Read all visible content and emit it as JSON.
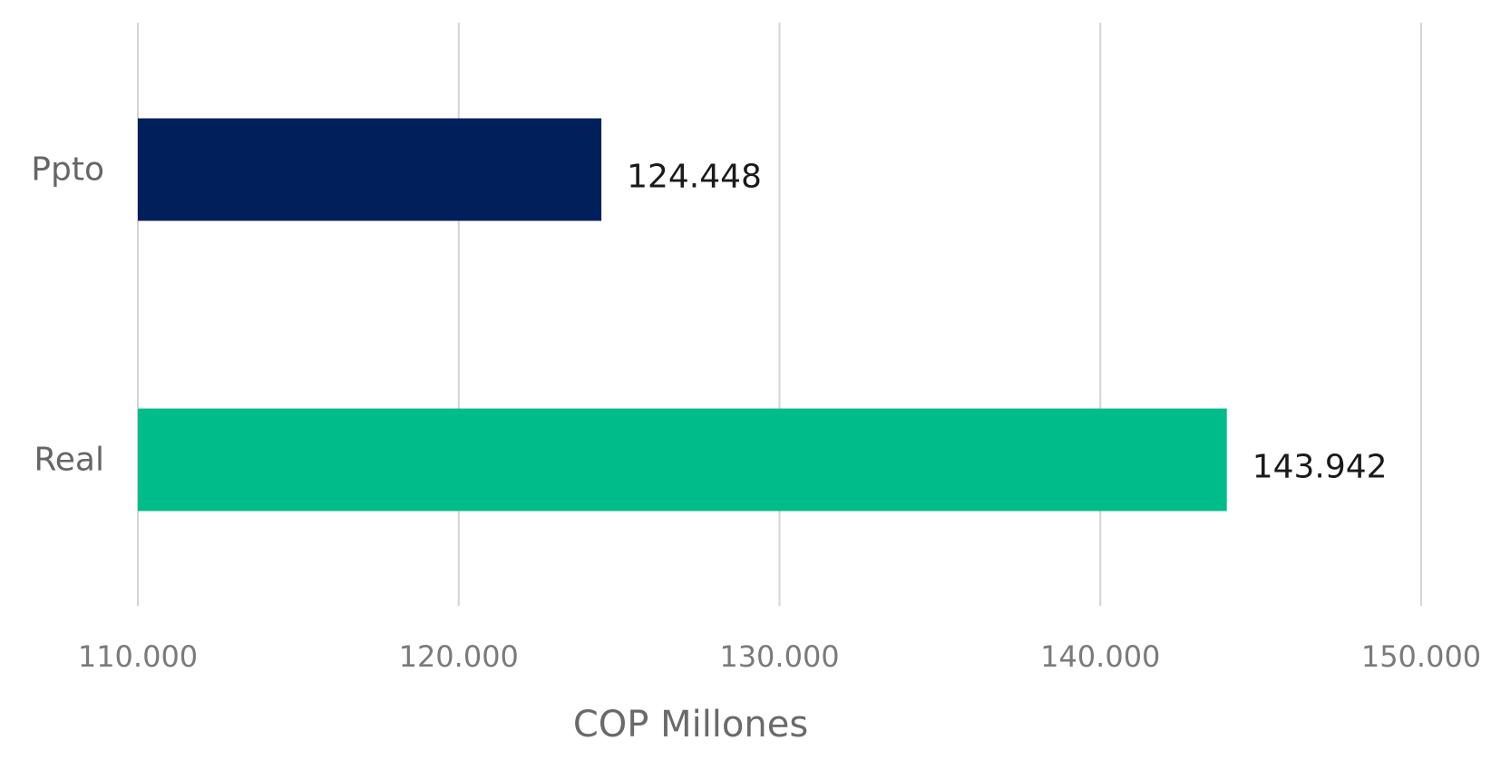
{
  "chart_data": {
    "type": "bar",
    "orientation": "horizontal",
    "categories": [
      "Ppto",
      "Real"
    ],
    "values": [
      124448,
      143942
    ],
    "value_labels": [
      "124.448",
      "143.942"
    ],
    "bar_colors": [
      "#001f5b",
      "#00bb8a"
    ],
    "xlabel": "COP Millones",
    "ylabel": "",
    "xlim": [
      110000,
      150000
    ],
    "xticks": [
      110000,
      120000,
      130000,
      140000,
      150000
    ],
    "xtick_labels": [
      "110.000",
      "120.000",
      "130.000",
      "140.000",
      "150.000"
    ],
    "grid": "vertical",
    "legend": "none"
  }
}
